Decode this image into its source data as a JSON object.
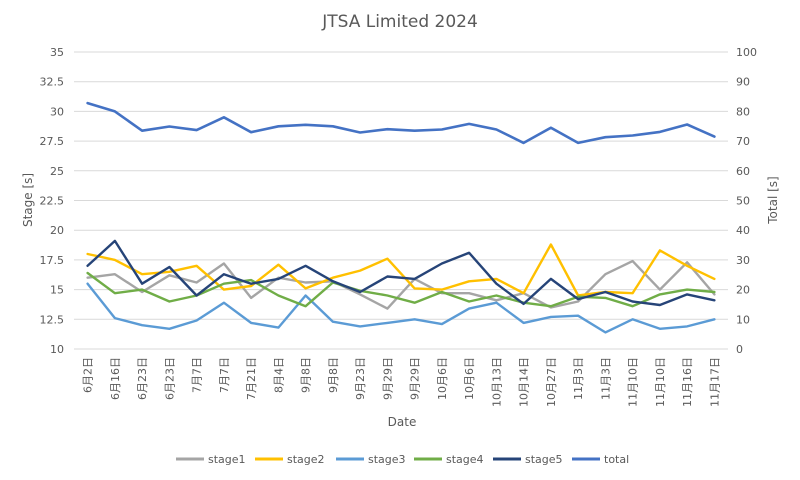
{
  "chart_data": {
    "type": "line",
    "title": "JTSA Limited 2024",
    "xlabel": "Date",
    "ylabel": "Stage [s]",
    "y2label": "Total [s]",
    "ylim": [
      10,
      35
    ],
    "yticks": [
      "10",
      "12.5",
      "15",
      "17.5",
      "20",
      "22.5",
      "25",
      "27.5",
      "30",
      "32.5",
      "35"
    ],
    "y2lim": [
      0,
      100
    ],
    "y2ticks": [
      "0",
      "10",
      "20",
      "30",
      "40",
      "50",
      "60",
      "70",
      "80",
      "90",
      "100"
    ],
    "grid": true,
    "legend_position": "bottom",
    "categories": [
      "6月2日",
      "6月16日",
      "6月23日",
      "6月23日",
      "7月7日",
      "7月7日",
      "7月21日",
      "8月4日",
      "9月8日",
      "9月8日",
      "9月23日",
      "9月29日",
      "9月29日",
      "10月6日",
      "10月6日",
      "10月13日",
      "10月14日",
      "10月27日",
      "11月3日",
      "11月3日",
      "11月10日",
      "11月10日",
      "11月16日",
      "11月17日"
    ],
    "series": [
      {
        "name": "stage1",
        "color": "#a5a5a5",
        "axis": "left",
        "values": [
          16.0,
          16.3,
          14.8,
          16.2,
          15.6,
          17.2,
          14.3,
          16.0,
          15.6,
          15.7,
          14.6,
          13.4,
          15.9,
          14.7,
          14.7,
          14.1,
          14.7,
          13.5,
          14.0,
          16.3,
          17.4,
          15.0,
          17.3,
          14.6
        ]
      },
      {
        "name": "stage2",
        "color": "#ffc000",
        "axis": "left",
        "values": [
          18.0,
          17.5,
          16.3,
          16.5,
          17.0,
          15.0,
          15.3,
          17.1,
          15.1,
          16.0,
          16.6,
          17.6,
          15.1,
          15.0,
          15.7,
          15.9,
          14.7,
          18.8,
          14.5,
          14.8,
          14.7,
          18.3,
          17.0,
          15.9
        ]
      },
      {
        "name": "stage3",
        "color": "#5b9bd5",
        "axis": "left",
        "values": [
          15.5,
          12.6,
          12.0,
          11.7,
          12.4,
          13.9,
          12.2,
          11.8,
          14.5,
          12.3,
          11.9,
          12.2,
          12.5,
          12.1,
          13.4,
          13.9,
          12.2,
          12.7,
          12.8,
          11.4,
          12.5,
          11.7,
          11.9,
          12.5
        ]
      },
      {
        "name": "stage4",
        "color": "#70ad47",
        "axis": "left",
        "values": [
          16.4,
          14.7,
          15.0,
          14.0,
          14.5,
          15.5,
          15.8,
          14.5,
          13.6,
          15.6,
          14.9,
          14.5,
          13.9,
          14.8,
          14.0,
          14.5,
          13.9,
          13.6,
          14.4,
          14.3,
          13.6,
          14.6,
          15.0,
          14.8
        ]
      },
      {
        "name": "stage5",
        "color": "#264478",
        "axis": "left",
        "values": [
          17.0,
          19.1,
          15.5,
          16.9,
          14.5,
          16.3,
          15.5,
          15.9,
          17.0,
          15.7,
          14.8,
          16.1,
          15.9,
          17.2,
          18.1,
          15.5,
          13.8,
          15.9,
          14.2,
          14.8,
          14.0,
          13.7,
          14.6,
          14.1
        ]
      },
      {
        "name": "total",
        "color": "#4472c4",
        "axis": "right",
        "values": [
          82.8,
          80.0,
          73.5,
          74.9,
          73.7,
          78.0,
          73.0,
          75.0,
          75.5,
          75.0,
          72.9,
          74.0,
          73.5,
          73.9,
          75.8,
          73.9,
          69.4,
          74.5,
          69.4,
          71.3,
          71.9,
          73.1,
          75.6,
          71.5
        ]
      }
    ]
  }
}
